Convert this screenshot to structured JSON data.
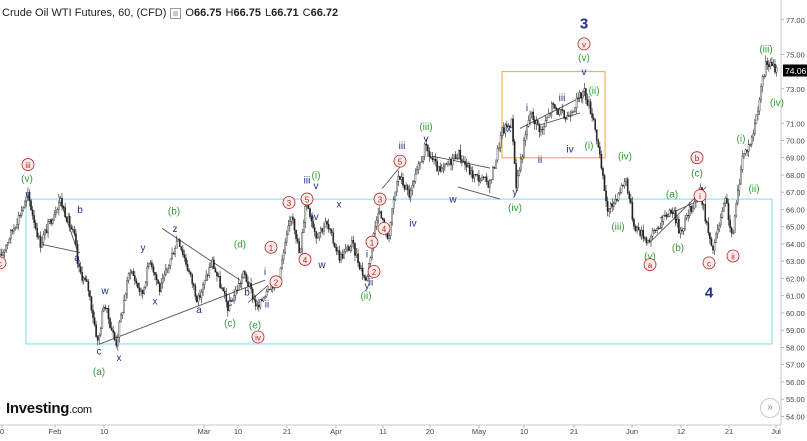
{
  "header": {
    "symbol": "Crude Oil WTI Futures, 60, (CFD)",
    "open_label": "O",
    "open": "66.75",
    "high_label": "H",
    "high": "66.75",
    "low_label": "L",
    "low": "66.71",
    "close_label": "C",
    "close": "66.72"
  },
  "logo": {
    "name": "Investing",
    "suffix": ".com"
  },
  "colors": {
    "wave_blue": "#1f2d8a",
    "wave_green": "#2e9e2e",
    "wave_red": "#b02525",
    "box_cyan": "#8fe3ef",
    "box_orange": "#f0b25a",
    "price_badge": "#000000",
    "candle": "#222222"
  },
  "chart_data": {
    "type": "candlestick",
    "instrument": "Crude Oil WTI Futures",
    "interval": "60",
    "ylim": [
      53.5,
      77.8
    ],
    "y_ticks": [
      "77.00",
      "75.00",
      "74.06",
      "73.00",
      "71.00",
      "70.00",
      "69.00",
      "68.00",
      "67.00",
      "66.00",
      "65.00",
      "64.00",
      "63.00",
      "62.00",
      "61.00",
      "60.00",
      "59.00",
      "58.00",
      "57.00",
      "56.00",
      "55.00",
      "54.00"
    ],
    "last_price": "74.06",
    "x_ticks": [
      "0",
      "Feb",
      "10",
      "Mar",
      "10",
      "21",
      "Apr",
      "11",
      "20",
      "May",
      "10",
      "21",
      "Jun",
      "12",
      "21",
      "Jul"
    ],
    "price_path": [
      {
        "t": 0,
        "p": 63.2
      },
      {
        "t": 28,
        "p": 66.8
      },
      {
        "t": 40,
        "p": 64.0
      },
      {
        "t": 60,
        "p": 66.6
      },
      {
        "t": 75,
        "p": 64.3
      },
      {
        "t": 78,
        "p": 62.6
      },
      {
        "t": 88,
        "p": 61.5
      },
      {
        "t": 98,
        "p": 58.2
      },
      {
        "t": 104,
        "p": 60.6
      },
      {
        "t": 116,
        "p": 58.2
      },
      {
        "t": 130,
        "p": 62.6
      },
      {
        "t": 142,
        "p": 61.0
      },
      {
        "t": 150,
        "p": 63.2
      },
      {
        "t": 160,
        "p": 61.3
      },
      {
        "t": 178,
        "p": 64.4
      },
      {
        "t": 198,
        "p": 60.7
      },
      {
        "t": 212,
        "p": 63.0
      },
      {
        "t": 228,
        "p": 60.3
      },
      {
        "t": 244,
        "p": 62.3
      },
      {
        "t": 258,
        "p": 60.2
      },
      {
        "t": 268,
        "p": 61.6
      },
      {
        "t": 278,
        "p": 61.8
      },
      {
        "t": 292,
        "p": 65.9
      },
      {
        "t": 300,
        "p": 63.2
      },
      {
        "t": 306,
        "p": 66.7
      },
      {
        "t": 316,
        "p": 64.5
      },
      {
        "t": 326,
        "p": 65.2
      },
      {
        "t": 340,
        "p": 63.2
      },
      {
        "t": 352,
        "p": 64.0
      },
      {
        "t": 366,
        "p": 61.8
      },
      {
        "t": 378,
        "p": 66.1
      },
      {
        "t": 388,
        "p": 64.3
      },
      {
        "t": 398,
        "p": 68.0
      },
      {
        "t": 410,
        "p": 66.8
      },
      {
        "t": 425,
        "p": 69.6
      },
      {
        "t": 440,
        "p": 68.1
      },
      {
        "t": 458,
        "p": 69.3
      },
      {
        "t": 472,
        "p": 68.0
      },
      {
        "t": 490,
        "p": 67.5
      },
      {
        "t": 502,
        "p": 70.5
      },
      {
        "t": 512,
        "p": 71.1
      },
      {
        "t": 516,
        "p": 67.4
      },
      {
        "t": 530,
        "p": 71.6
      },
      {
        "t": 542,
        "p": 70.5
      },
      {
        "t": 552,
        "p": 72.0
      },
      {
        "t": 566,
        "p": 71.3
      },
      {
        "t": 584,
        "p": 72.9
      },
      {
        "t": 594,
        "p": 71.2
      },
      {
        "t": 608,
        "p": 65.8
      },
      {
        "t": 626,
        "p": 67.8
      },
      {
        "t": 634,
        "p": 65.1
      },
      {
        "t": 648,
        "p": 64.2
      },
      {
        "t": 672,
        "p": 66.1
      },
      {
        "t": 680,
        "p": 64.7
      },
      {
        "t": 700,
        "p": 67.2
      },
      {
        "t": 712,
        "p": 63.5
      },
      {
        "t": 726,
        "p": 66.6
      },
      {
        "t": 732,
        "p": 64.2
      },
      {
        "t": 742,
        "p": 69.0
      },
      {
        "t": 752,
        "p": 70.1
      },
      {
        "t": 766,
        "p": 74.5
      },
      {
        "t": 778,
        "p": 74.1
      }
    ],
    "wave_labels": [
      {
        "text": "iii",
        "t": 28,
        "p": 68.4,
        "color": "red",
        "circled": true
      },
      {
        "text": "(v)",
        "t": 27,
        "p": 67.6,
        "color": "green"
      },
      {
        "text": "v",
        "t": 28,
        "p": 66.7,
        "color": "blue"
      },
      {
        "text": "c",
        "t": 0,
        "p": 62.7,
        "color": "red",
        "circled": true
      },
      {
        "text": "b",
        "t": 80,
        "p": 65.8,
        "color": "blue"
      },
      {
        "text": "a",
        "t": 77,
        "p": 63.0,
        "color": "blue"
      },
      {
        "text": "w",
        "t": 105,
        "p": 61.1,
        "color": "blue"
      },
      {
        "text": "c",
        "t": 99,
        "p": 57.6,
        "color": "blue"
      },
      {
        "text": "x",
        "t": 119,
        "p": 57.2,
        "color": "blue"
      },
      {
        "text": "(a)",
        "t": 99,
        "p": 56.4,
        "color": "green"
      },
      {
        "text": "y",
        "t": 143,
        "p": 63.6,
        "color": "blue"
      },
      {
        "text": "x",
        "t": 155,
        "p": 60.5,
        "color": "blue"
      },
      {
        "text": "(b)",
        "t": 174,
        "p": 65.7,
        "color": "green"
      },
      {
        "text": "z",
        "t": 175,
        "p": 64.7,
        "color": "blue"
      },
      {
        "text": "a",
        "t": 199,
        "p": 60.0,
        "color": "blue"
      },
      {
        "text": "c",
        "t": 230,
        "p": 60.4,
        "color": "blue"
      },
      {
        "text": "(c)",
        "t": 230,
        "p": 59.2,
        "color": "green"
      },
      {
        "text": "(d)",
        "t": 240,
        "p": 63.8,
        "color": "green"
      },
      {
        "text": "(e)",
        "t": 255,
        "p": 59.1,
        "color": "green"
      },
      {
        "text": "iv",
        "t": 258,
        "p": 58.4,
        "color": "red",
        "circled": true
      },
      {
        "text": "b",
        "t": 247,
        "p": 61.0,
        "color": "blue"
      },
      {
        "text": "i",
        "t": 265,
        "p": 62.2,
        "color": "blue"
      },
      {
        "text": "ii",
        "t": 267,
        "p": 60.3,
        "color": "blue"
      },
      {
        "text": "1",
        "t": 271,
        "p": 63.6,
        "color": "red",
        "circled": true
      },
      {
        "text": "2",
        "t": 276,
        "p": 61.6,
        "color": "red",
        "circled": true
      },
      {
        "text": "3",
        "t": 289,
        "p": 66.2,
        "color": "red",
        "circled": true
      },
      {
        "text": "4",
        "t": 305,
        "p": 62.9,
        "color": "red",
        "circled": true
      },
      {
        "text": "iii",
        "t": 307,
        "p": 67.5,
        "color": "blue"
      },
      {
        "text": "(i)",
        "t": 316,
        "p": 67.8,
        "color": "green"
      },
      {
        "text": "v",
        "t": 316,
        "p": 67.2,
        "color": "blue"
      },
      {
        "text": "5",
        "t": 307,
        "p": 66.4,
        "color": "red",
        "circled": true
      },
      {
        "text": "iv",
        "t": 315,
        "p": 65.4,
        "color": "blue"
      },
      {
        "text": "w",
        "t": 322,
        "p": 62.6,
        "color": "blue"
      },
      {
        "text": "x",
        "t": 339,
        "p": 66.1,
        "color": "blue"
      },
      {
        "text": "1",
        "t": 372,
        "p": 63.9,
        "color": "red",
        "circled": true
      },
      {
        "text": "i",
        "t": 367,
        "p": 63.2,
        "color": "blue"
      },
      {
        "text": "2",
        "t": 374,
        "p": 62.2,
        "color": "red",
        "circled": true
      },
      {
        "text": "y",
        "t": 367,
        "p": 61.4,
        "color": "blue"
      },
      {
        "text": "ii",
        "t": 371,
        "p": 61.6,
        "color": "blue"
      },
      {
        "text": "(ii)",
        "t": 366,
        "p": 60.8,
        "color": "green"
      },
      {
        "text": "3",
        "t": 380,
        "p": 66.4,
        "color": "red",
        "circled": true
      },
      {
        "text": "4",
        "t": 384,
        "p": 64.7,
        "color": "red",
        "circled": true
      },
      {
        "text": "5",
        "t": 400,
        "p": 68.6,
        "color": "red",
        "circled": true
      },
      {
        "text": "iii",
        "t": 402,
        "p": 69.5,
        "color": "blue"
      },
      {
        "text": "iv",
        "t": 413,
        "p": 65.0,
        "color": "blue"
      },
      {
        "text": "(iii)",
        "t": 426,
        "p": 70.6,
        "color": "green"
      },
      {
        "text": "v",
        "t": 426,
        "p": 69.9,
        "color": "blue"
      },
      {
        "text": "w",
        "t": 453,
        "p": 66.4,
        "color": "blue"
      },
      {
        "text": "y",
        "t": 515,
        "p": 66.8,
        "color": "blue"
      },
      {
        "text": "(iv)",
        "t": 515,
        "p": 65.9,
        "color": "green"
      },
      {
        "text": "x",
        "t": 509,
        "p": 70.5,
        "color": "blue"
      },
      {
        "text": "i",
        "t": 527,
        "p": 71.7,
        "color": "blue"
      },
      {
        "text": "ii",
        "t": 540,
        "p": 68.7,
        "color": "blue"
      },
      {
        "text": "iii",
        "t": 562,
        "p": 72.3,
        "color": "blue"
      },
      {
        "text": "iv",
        "t": 570,
        "p": 69.3,
        "color": "blue"
      },
      {
        "text": "3",
        "t": 584,
        "p": 76.5,
        "color": "blue",
        "big": true
      },
      {
        "text": "v",
        "t": 584,
        "p": 75.4,
        "color": "red",
        "circled": true
      },
      {
        "text": "(v)",
        "t": 584,
        "p": 74.6,
        "color": "green"
      },
      {
        "text": "v",
        "t": 584,
        "p": 73.8,
        "color": "blue"
      },
      {
        "text": "(ii)",
        "t": 594,
        "p": 72.7,
        "color": "green"
      },
      {
        "text": "(i)",
        "t": 589,
        "p": 69.5,
        "color": "green"
      },
      {
        "text": "(iv)",
        "t": 625,
        "p": 68.9,
        "color": "green"
      },
      {
        "text": "(iii)",
        "t": 618,
        "p": 64.8,
        "color": "green"
      },
      {
        "text": "(a)",
        "t": 672,
        "p": 66.7,
        "color": "green"
      },
      {
        "text": "(b)",
        "t": 678,
        "p": 63.6,
        "color": "green"
      },
      {
        "text": "(v)",
        "t": 650,
        "p": 63.1,
        "color": "green"
      },
      {
        "text": "a",
        "t": 650,
        "p": 62.6,
        "color": "red",
        "circled": true
      },
      {
        "text": "b",
        "t": 697,
        "p": 68.8,
        "color": "red",
        "circled": true
      },
      {
        "text": "(c)",
        "t": 697,
        "p": 67.9,
        "color": "green"
      },
      {
        "text": "i",
        "t": 700,
        "p": 66.6,
        "color": "red",
        "circled": true
      },
      {
        "text": "c",
        "t": 709,
        "p": 62.7,
        "color": "red",
        "circled": true
      },
      {
        "text": "4",
        "t": 709,
        "p": 60.9,
        "color": "blue",
        "big": true
      },
      {
        "text": "ii",
        "t": 733,
        "p": 63.1,
        "color": "red",
        "circled": true
      },
      {
        "text": "(ii)",
        "t": 754,
        "p": 67.0,
        "color": "green"
      },
      {
        "text": "(i)",
        "t": 741,
        "p": 69.9,
        "color": "green"
      },
      {
        "text": "(iii)",
        "t": 766,
        "p": 75.1,
        "color": "green"
      },
      {
        "text": "(iv)",
        "t": 777,
        "p": 72.0,
        "color": "green"
      }
    ],
    "boxes": [
      {
        "t0": 26,
        "t1": 772,
        "p0": 58.2,
        "p1": 66.6,
        "color": "cyan"
      },
      {
        "t0": 502,
        "t1": 605,
        "p0": 69.0,
        "p1": 74.0,
        "color": "orange"
      }
    ],
    "trendlines": [
      {
        "t0": 58,
        "p0": 66.9,
        "t1": 78,
        "p1": 63.5
      },
      {
        "t0": 40,
        "p0": 64.0,
        "t1": 80,
        "p1": 63.5
      },
      {
        "t0": 100,
        "p0": 58.2,
        "t1": 265,
        "p1": 61.9
      },
      {
        "t0": 162,
        "p0": 64.9,
        "t1": 240,
        "p1": 61.9
      },
      {
        "t0": 248,
        "p0": 60.6,
        "t1": 268,
        "p1": 61.6
      },
      {
        "t0": 382,
        "p0": 67.2,
        "t1": 402,
        "p1": 68.6
      },
      {
        "t0": 432,
        "p0": 69.1,
        "t1": 490,
        "p1": 68.4
      },
      {
        "t0": 458,
        "p0": 67.3,
        "t1": 500,
        "p1": 66.6
      },
      {
        "t0": 520,
        "p0": 70.7,
        "t1": 584,
        "p1": 72.6
      },
      {
        "t0": 540,
        "p0": 70.9,
        "t1": 580,
        "p1": 71.6
      },
      {
        "t0": 650,
        "p0": 64.1,
        "t1": 706,
        "p1": 67.3
      },
      {
        "t0": 660,
        "p0": 65.5,
        "t1": 706,
        "p1": 66.7
      }
    ]
  }
}
